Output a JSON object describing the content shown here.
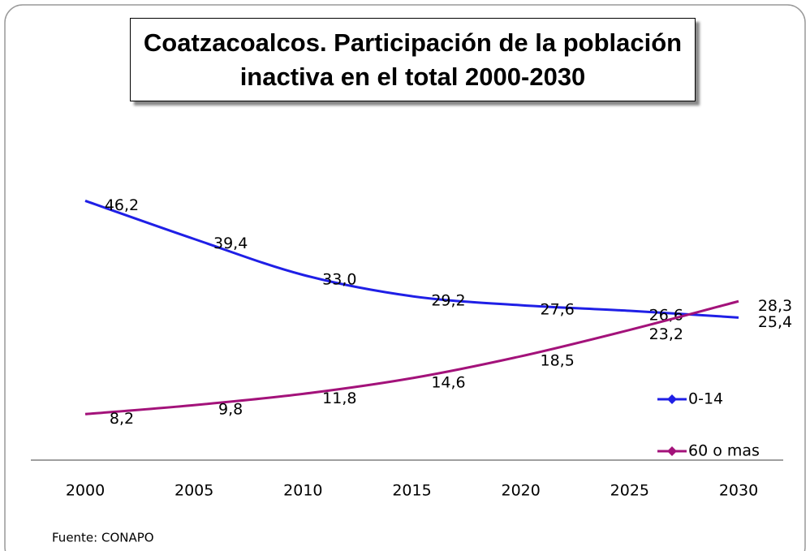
{
  "chart_data": {
    "type": "line",
    "title": "Coatzacoalcos. Participación de la población inactiva en el total 2000-2030",
    "source": "Fuente: CONAPO",
    "categories": [
      "2000",
      "2005",
      "2010",
      "2015",
      "2020",
      "2025",
      "2030"
    ],
    "ylim": [
      0,
      60
    ],
    "legend": "right",
    "series": [
      {
        "name": "0-14",
        "color": "#1f1fe6",
        "values": [
          46.2,
          39.4,
          33.0,
          29.2,
          27.6,
          26.6,
          25.4
        ],
        "value_labels": [
          "46,2",
          "39,4",
          "33,0",
          "29,2",
          "27,6",
          "26,6",
          "25,4"
        ]
      },
      {
        "name": "60 o mas",
        "color": "#a3127a",
        "values": [
          8.2,
          9.8,
          11.8,
          14.6,
          18.5,
          23.2,
          28.3
        ],
        "value_labels": [
          "8,2",
          "9,8",
          "11,8",
          "14,6",
          "18,5",
          "23,2",
          "28,3"
        ]
      }
    ]
  }
}
